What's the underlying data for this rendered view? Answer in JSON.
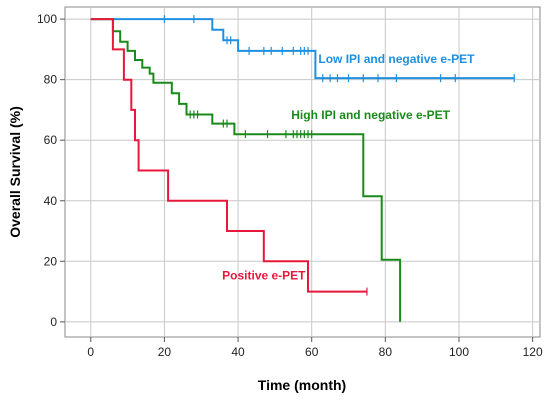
{
  "chart_data": {
    "type": "line",
    "xlabel": "Time (month)",
    "ylabel": "Overall Survival (%)",
    "xlim": [
      -7,
      122
    ],
    "ylim": [
      -5,
      104
    ],
    "xticks": [
      0,
      20,
      40,
      60,
      80,
      100,
      120
    ],
    "yticks": [
      0,
      20,
      40,
      60,
      80,
      100
    ],
    "grid": true,
    "series": [
      {
        "name": "Low IPI and negative e-PET",
        "color": "#1e90e0",
        "steps": [
          [
            0,
            100
          ],
          [
            33,
            100
          ],
          [
            33,
            96.5
          ],
          [
            36,
            96.5
          ],
          [
            36,
            93
          ],
          [
            40,
            93
          ],
          [
            40,
            89.5
          ],
          [
            61,
            89.5
          ],
          [
            61,
            80.5
          ],
          [
            115,
            80.5
          ]
        ],
        "censored": [
          [
            20,
            100
          ],
          [
            28,
            100
          ],
          [
            37,
            93
          ],
          [
            38,
            93
          ],
          [
            43,
            89.5
          ],
          [
            47,
            89.5
          ],
          [
            49,
            89.5
          ],
          [
            52,
            89.5
          ],
          [
            55,
            89.5
          ],
          [
            57,
            89.5
          ],
          [
            58,
            89.5
          ],
          [
            59,
            89.5
          ],
          [
            63,
            80.5
          ],
          [
            65,
            80.5
          ],
          [
            67,
            80.5
          ],
          [
            70,
            80.5
          ],
          [
            74,
            80.5
          ],
          [
            78,
            80.5
          ],
          [
            83,
            80.5
          ],
          [
            95,
            80.5
          ],
          [
            99,
            80.5
          ],
          [
            115,
            80.5
          ]
        ]
      },
      {
        "name": "High IPI and negative e-PET",
        "color": "#1a8a1a",
        "steps": [
          [
            0,
            100
          ],
          [
            6,
            100
          ],
          [
            6,
            96
          ],
          [
            8,
            96
          ],
          [
            8,
            92.5
          ],
          [
            10,
            92.5
          ],
          [
            10,
            89.5
          ],
          [
            12,
            89.5
          ],
          [
            12,
            86.5
          ],
          [
            14,
            86.5
          ],
          [
            14,
            84
          ],
          [
            16,
            84
          ],
          [
            16,
            82
          ],
          [
            17,
            82
          ],
          [
            17,
            79
          ],
          [
            22,
            79
          ],
          [
            22,
            75.5
          ],
          [
            24,
            75.5
          ],
          [
            24,
            72
          ],
          [
            26,
            72
          ],
          [
            26,
            68.5
          ],
          [
            33,
            68.5
          ],
          [
            33,
            65.5
          ],
          [
            39,
            65.5
          ],
          [
            39,
            62
          ],
          [
            74,
            62
          ],
          [
            74,
            41.5
          ],
          [
            79,
            41.5
          ],
          [
            79,
            20.5
          ],
          [
            84,
            20.5
          ],
          [
            84,
            0
          ]
        ],
        "censored": [
          [
            27,
            68.5
          ],
          [
            28,
            68.5
          ],
          [
            29,
            68.5
          ],
          [
            36,
            65.5
          ],
          [
            37,
            65.5
          ],
          [
            42,
            62
          ],
          [
            48,
            62
          ],
          [
            53,
            62
          ],
          [
            55,
            62
          ],
          [
            56,
            62
          ],
          [
            57,
            62
          ],
          [
            58,
            62
          ],
          [
            59,
            62
          ],
          [
            60,
            62
          ]
        ]
      },
      {
        "name": "Positive e-PET",
        "color": "#e8173c",
        "steps": [
          [
            0,
            100
          ],
          [
            6,
            100
          ],
          [
            6,
            90
          ],
          [
            9,
            90
          ],
          [
            9,
            80
          ],
          [
            11,
            80
          ],
          [
            11,
            70
          ],
          [
            12,
            70
          ],
          [
            12,
            60
          ],
          [
            13,
            60
          ],
          [
            13,
            50
          ],
          [
            21,
            50
          ],
          [
            21,
            40
          ],
          [
            37,
            40
          ],
          [
            37,
            30
          ],
          [
            47,
            30
          ],
          [
            47,
            20
          ],
          [
            59,
            20
          ],
          [
            59,
            10
          ],
          [
            75,
            10
          ]
        ],
        "censored": [
          [
            75,
            10
          ]
        ]
      }
    ],
    "annotations": [
      {
        "series": 0,
        "text": "Low IPI and negative e-PET",
        "x": 83,
        "y": 85.5
      },
      {
        "series": 1,
        "text": "High IPI and negative e-PET",
        "x": 76,
        "y": 67
      },
      {
        "series": 2,
        "text": "Positive e-PET",
        "x": 47,
        "y": 14
      }
    ]
  }
}
